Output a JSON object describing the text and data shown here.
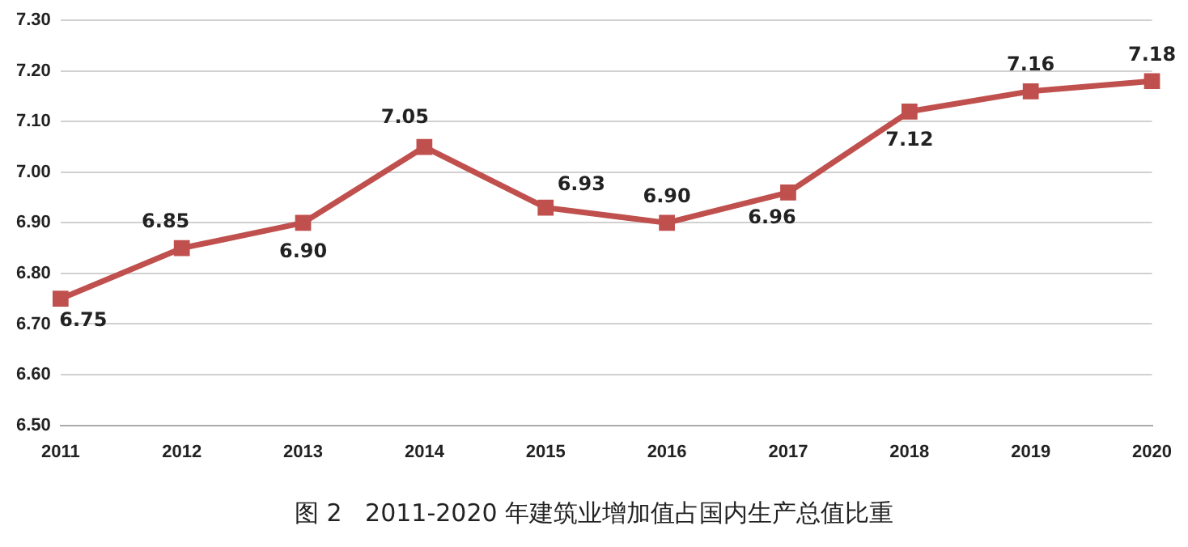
{
  "chart_data": {
    "type": "line",
    "categories": [
      "2011",
      "2012",
      "2013",
      "2014",
      "2015",
      "2016",
      "2017",
      "2018",
      "2019",
      "2020"
    ],
    "series": [
      {
        "color": "#c0504d",
        "values": [
          6.75,
          6.85,
          6.9,
          7.05,
          6.93,
          6.9,
          6.96,
          7.12,
          7.16,
          7.18
        ],
        "value_labels": [
          "6.75",
          "6.85",
          "6.90",
          "7.05",
          "6.93",
          "6.90",
          "6.96",
          "7.12",
          "7.16",
          "7.18"
        ]
      }
    ],
    "ylim": [
      6.5,
      7.3
    ],
    "yticks": [
      {
        "value": 6.5,
        "label": "6.50"
      },
      {
        "value": 6.6,
        "label": "6.60"
      },
      {
        "value": 6.7,
        "label": "6.70"
      },
      {
        "value": 6.8,
        "label": "6.80"
      },
      {
        "value": 6.9,
        "label": "6.90"
      },
      {
        "value": 7.0,
        "label": "7.00"
      },
      {
        "value": 7.1,
        "label": "7.10"
      },
      {
        "value": 7.2,
        "label": "7.20"
      },
      {
        "value": 7.3,
        "label": "7.30"
      }
    ],
    "grid": "y",
    "legend": false,
    "marker": "square",
    "line_style": "solid",
    "annotations": [
      "图 2   2011-2020 年建筑业增加值占国内生产总值比重"
    ]
  }
}
